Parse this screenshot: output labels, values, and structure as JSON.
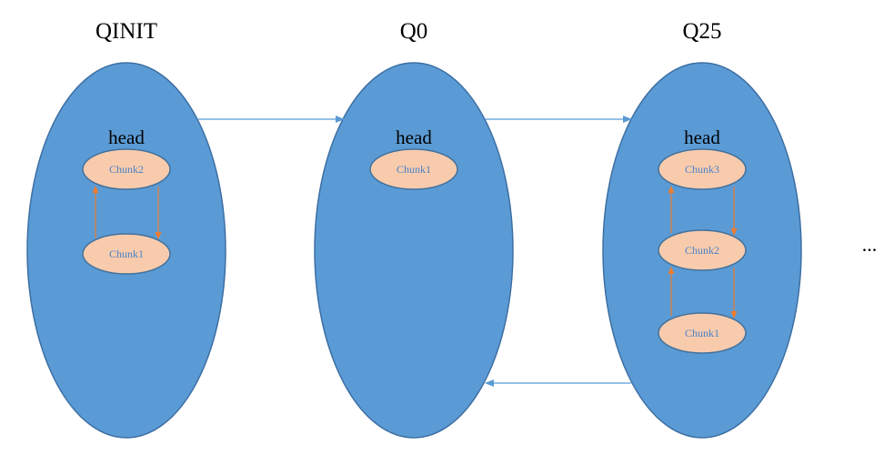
{
  "colors": {
    "queue_fill": "#5b9bd5",
    "queue_stroke": "#3d6fa3",
    "chunk_fill": "#f8cbad",
    "chunk_stroke": "#41719c",
    "chunk_text": "#4a82c8",
    "chunk_arrow": "#ed7d31",
    "queue_arrow": "#5b9bd5"
  },
  "queues": [
    {
      "title": "QINIT",
      "head": "head",
      "chunks": [
        "Chunk2",
        "Chunk1"
      ]
    },
    {
      "title": "Q0",
      "head": "head",
      "chunks": [
        "Chunk1"
      ]
    },
    {
      "title": "Q25",
      "head": "head",
      "chunks": [
        "Chunk3",
        "Chunk2",
        "Chunk1"
      ]
    }
  ],
  "ellipsis": "..."
}
